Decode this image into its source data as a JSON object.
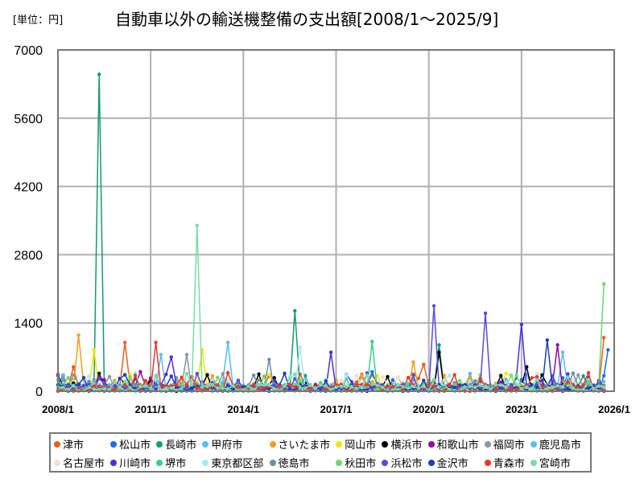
{
  "header": {
    "unit_label": "[単位：円]",
    "title": "自動車以外の輸送機整備の支出額[2008/1～2025/9]"
  },
  "chart_data": {
    "type": "line",
    "title": "自動車以外の輸送機整備の支出額[2008/1～2025/9]",
    "unit": "円",
    "xlabel": "",
    "ylabel": "",
    "ylim": [
      0,
      7000
    ],
    "yticks": [
      0,
      1400,
      2800,
      4200,
      5600,
      7000
    ],
    "xticks": [
      "2008/1",
      "2011/1",
      "2014/1",
      "2017/1",
      "2020/1",
      "2023/1",
      "2026/1"
    ],
    "x_range": [
      "2008/1",
      "2026/1"
    ],
    "grid": true,
    "legend_position": "bottom",
    "series": [
      {
        "name": "津市",
        "color": "#ea5d1f",
        "peaks": [
          [
            2008.5,
            500
          ],
          [
            2010.1,
            1000
          ],
          [
            2019.9,
            550
          ],
          [
            2025.7,
            1100
          ]
        ]
      },
      {
        "name": "松山市",
        "color": "#1f6fe0",
        "peaks": [
          [
            2018.1,
            400
          ],
          [
            2025.8,
            850
          ]
        ]
      },
      {
        "name": "長崎市",
        "color": "#129a70",
        "peaks": [
          [
            2009.35,
            6500
          ],
          [
            2015.6,
            1650
          ],
          [
            2020.4,
            950
          ]
        ]
      },
      {
        "name": "甲府市",
        "color": "#56bdf0",
        "peaks": [
          [
            2013.5,
            1000
          ],
          [
            2024.4,
            800
          ]
        ]
      },
      {
        "name": "さいたま市",
        "color": "#f0a020",
        "peaks": [
          [
            2008.7,
            1150
          ],
          [
            2019.5,
            600
          ]
        ]
      },
      {
        "name": "岡山市",
        "color": "#f6e600",
        "peaks": [
          [
            2009.1,
            850
          ],
          [
            2012.6,
            850
          ]
        ]
      },
      {
        "name": "横浜市",
        "color": "#000000",
        "peaks": [
          [
            2020.3,
            800
          ],
          [
            2023.2,
            500
          ]
        ]
      },
      {
        "name": "和歌山市",
        "color": "#8a0f9a",
        "peaks": [
          [
            2010.6,
            400
          ],
          [
            2024.1,
            950
          ]
        ]
      },
      {
        "name": "福岡市",
        "color": "#8a98a0",
        "peaks": [
          [
            2012.2,
            750
          ]
        ]
      },
      {
        "name": "鹿児島市",
        "color": "#5bc0e8",
        "peaks": [
          [
            2011.3,
            750
          ]
        ]
      },
      {
        "name": "名古屋市",
        "color": "#f6dfc8",
        "peaks": [
          [
            2012.0,
            300
          ]
        ]
      },
      {
        "name": "川崎市",
        "color": "#4a2ee0",
        "peaks": [
          [
            2011.6,
            700
          ],
          [
            2016.9,
            800
          ],
          [
            2023.0,
            1370
          ]
        ]
      },
      {
        "name": "堺市",
        "color": "#35d08a",
        "peaks": [
          [
            2018.2,
            1020
          ]
        ]
      },
      {
        "name": "東京都区部",
        "color": "#a6eaf2",
        "peaks": [
          [
            2015.8,
            900
          ]
        ]
      },
      {
        "name": "徳島市",
        "color": "#6a8ea6",
        "peaks": [
          [
            2014.8,
            650
          ]
        ]
      },
      {
        "name": "秋田市",
        "color": "#6ed66e",
        "peaks": [
          [
            2025.6,
            2200
          ]
        ]
      },
      {
        "name": "浜松市",
        "color": "#5a4ae0",
        "peaks": [
          [
            2020.1,
            1750
          ],
          [
            2021.9,
            1600
          ]
        ]
      },
      {
        "name": "金沢市",
        "color": "#1c3fb8",
        "peaks": [
          [
            2023.8,
            1050
          ]
        ]
      },
      {
        "name": "青森市",
        "color": "#ea3a2a",
        "peaks": [
          [
            2011.2,
            1000
          ]
        ]
      },
      {
        "name": "宮崎市",
        "color": "#78dcaa",
        "peaks": [
          [
            2012.5,
            3400
          ]
        ]
      }
    ]
  }
}
